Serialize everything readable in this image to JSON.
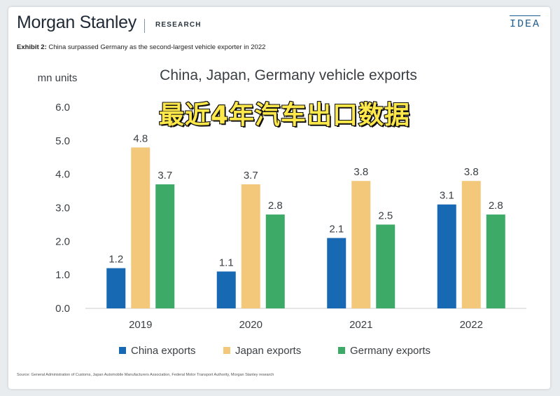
{
  "header": {
    "brand": "Morgan Stanley",
    "section": "RESEARCH",
    "badge": "IDEA",
    "exhibit_label": "Exhibit 2:",
    "exhibit_text": "China surpassed Germany as the second-largest vehicle exporter in 2022"
  },
  "overlay_text": "最近4年汽车出口数据",
  "source_text": "Source: General Administration of Customs, Japan Automobile Manufacturers Association, Federal Motor Transport Authority, Morgan Stanley research",
  "colors": {
    "china": "#1769b4",
    "japan": "#f4c87a",
    "germany": "#3daa68"
  },
  "chart_data": {
    "type": "bar",
    "title": "China, Japan, Germany vehicle exports",
    "ylabel": "mn units",
    "xlabel": "",
    "ylim": [
      0,
      6
    ],
    "yticks": [
      "0.0",
      "1.0",
      "2.0",
      "3.0",
      "4.0",
      "5.0",
      "6.0"
    ],
    "grid": false,
    "legend_position": "bottom",
    "categories": [
      "2019",
      "2020",
      "2021",
      "2022"
    ],
    "series": [
      {
        "name": "China exports",
        "values": [
          1.2,
          1.1,
          2.1,
          3.1
        ],
        "labels": [
          "1.2",
          "1.1",
          "2.1",
          "3.1"
        ]
      },
      {
        "name": "Japan exports",
        "values": [
          4.8,
          3.7,
          3.8,
          3.8
        ],
        "labels": [
          "4.8",
          "3.7",
          "3.8",
          "3.8"
        ]
      },
      {
        "name": "Germany exports",
        "values": [
          3.7,
          2.8,
          2.5,
          2.8
        ],
        "labels": [
          "3.7",
          "2.8",
          "2.5",
          "2.8"
        ]
      }
    ]
  }
}
